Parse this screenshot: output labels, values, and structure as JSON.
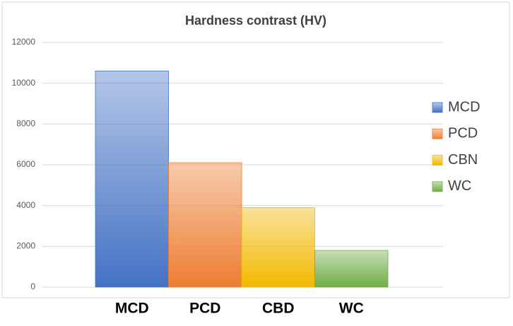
{
  "chart_data": {
    "type": "bar",
    "title": "Hardness contrast  (HV)",
    "categories": [
      "MCD",
      "PCD",
      "CBD",
      "WC"
    ],
    "series": [
      {
        "name": "MCD",
        "color": "#4472c4",
        "values": [
          10600,
          null,
          null,
          null
        ]
      },
      {
        "name": "PCD",
        "color": "#ed7d31",
        "values": [
          null,
          6100,
          null,
          null
        ]
      },
      {
        "name": "CBN",
        "color": "#f2b800",
        "values": [
          null,
          null,
          3900,
          null
        ]
      },
      {
        "name": "WC",
        "color": "#70ad47",
        "values": [
          null,
          null,
          null,
          1800
        ]
      }
    ],
    "ylim": [
      0,
      12000
    ],
    "yticks": [
      0,
      2000,
      4000,
      6000,
      8000,
      10000,
      12000
    ],
    "grid": true,
    "legend": "right"
  }
}
